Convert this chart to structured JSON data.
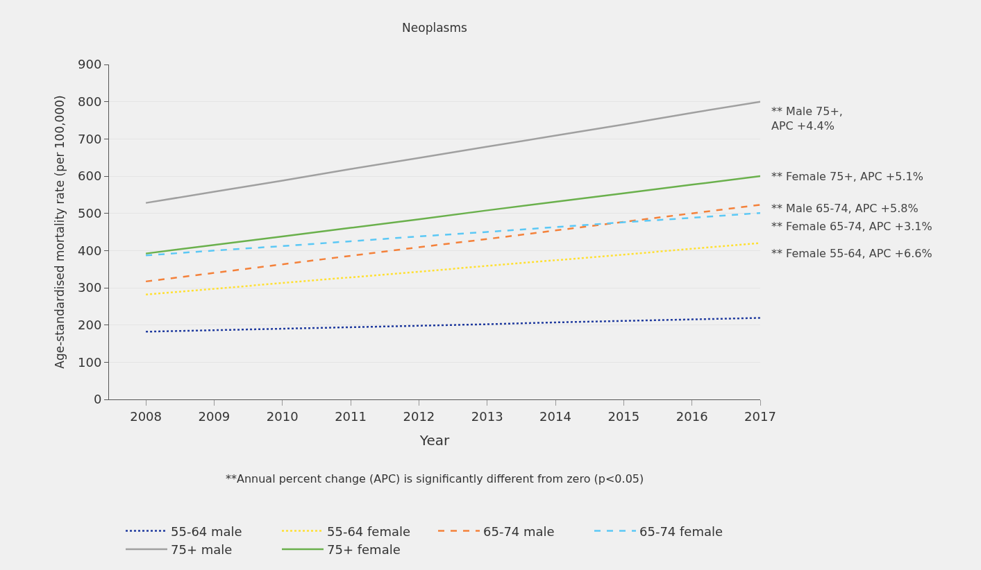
{
  "chart_data": {
    "type": "line",
    "title": "Neoplasms",
    "xlabel": "Year",
    "ylabel": "Age-standardised mortality rate (per 100,000)",
    "xlim": [
      2007.46,
      2017
    ],
    "xticks": [
      2008,
      2009,
      2010,
      2011,
      2012,
      2013,
      2014,
      2015,
      2016,
      2017
    ],
    "ylim": [
      0,
      900
    ],
    "yticks": [
      0,
      100,
      200,
      300,
      400,
      500,
      600,
      700,
      800,
      900
    ],
    "grid": "y",
    "legend": "bottom",
    "marker": "none",
    "x": [
      2008,
      2009,
      2010,
      2011,
      2012,
      2013,
      2014,
      2015,
      2016,
      2017
    ],
    "series": [
      {
        "name": "55-64 male",
        "color": "#1f3a9e",
        "line_style": "dotted",
        "values": [
          182,
          186,
          190,
          194,
          198,
          202,
          207,
          211,
          215,
          219
        ]
      },
      {
        "name": "55-64 female",
        "color": "#ffe033",
        "line_style": "dotted",
        "values": [
          282,
          297,
          313,
          328,
          343,
          359,
          374,
          389,
          405,
          420
        ]
      },
      {
        "name": "65-74 male",
        "color": "#f4813a",
        "line_style": "dashed",
        "values": [
          317,
          340,
          363,
          386,
          409,
          431,
          454,
          477,
          500,
          523
        ]
      },
      {
        "name": "65-74 female",
        "color": "#5bc8f5",
        "line_style": "dashed",
        "values": [
          387,
          400,
          412,
          425,
          438,
          450,
          463,
          476,
          488,
          501
        ]
      },
      {
        "name": "75+ male",
        "color": "#a0a0a0",
        "line_style": "solid",
        "values": [
          528,
          558,
          588,
          619,
          649,
          679,
          709,
          739,
          770,
          800
        ]
      },
      {
        "name": "75+ female",
        "color": "#6ab04c",
        "line_style": "solid",
        "values": [
          392,
          415,
          438,
          461,
          484,
          508,
          531,
          554,
          577,
          600
        ]
      }
    ],
    "annotations": [
      "** Male 75+,\nAPC +4.4%",
      "** Female 75+, APC +5.1%",
      "** Male 65-74, APC +5.8%",
      "** Female 65-74, APC +3.1%",
      "** Female 55-64, APC +6.6%",
      "**Annual percent change (APC) is significantly different from zero (p<0.05)"
    ]
  }
}
